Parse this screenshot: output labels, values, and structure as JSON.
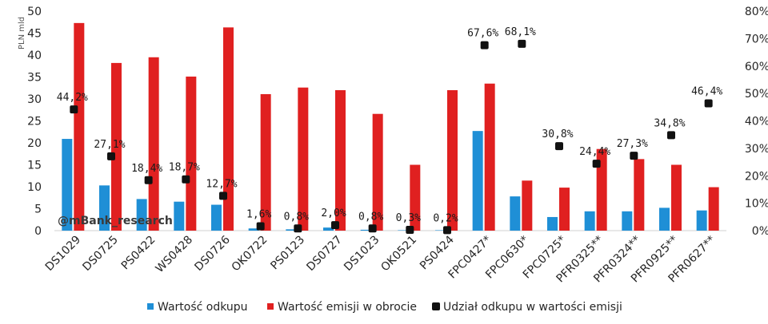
{
  "chart_data": {
    "type": "bar",
    "categories": [
      "DS1029",
      "DS0725",
      "PS0422",
      "WS0428",
      "DS0726",
      "OK0722",
      "PS0123",
      "DS0727",
      "DS1023",
      "OK0521",
      "PS0424",
      "FPC0427*",
      "FPC0630*",
      "FPC0725*",
      "PFR0325**",
      "PFR0324**",
      "PFR0925**",
      "PFR0627**"
    ],
    "y_unit_label": "PLN mld",
    "ylim": [
      0,
      50
    ],
    "yticks": [
      0,
      5,
      10,
      15,
      20,
      25,
      30,
      35,
      40,
      45,
      50
    ],
    "y2lim": [
      0,
      80
    ],
    "y2ticks": [
      "0%",
      "10%",
      "20%",
      "30%",
      "40%",
      "50%",
      "60%",
      "70%",
      "80%"
    ],
    "series": [
      {
        "name": "Wartość odkupu",
        "kind": "bar",
        "axis": "left",
        "color": "#1f8fd6",
        "values": [
          20.9,
          10.3,
          7.2,
          6.6,
          5.9,
          0.5,
          0.3,
          0.7,
          0.2,
          0.1,
          0.1,
          22.7,
          7.8,
          3.1,
          4.4,
          4.4,
          5.2,
          4.6
        ]
      },
      {
        "name": "Wartość emisji w obrocie",
        "kind": "bar",
        "axis": "left",
        "color": "#e02020",
        "values": [
          47.3,
          38.2,
          39.5,
          35.1,
          46.3,
          31.1,
          32.6,
          32.0,
          26.6,
          15.0,
          32.0,
          33.5,
          11.4,
          9.8,
          18.6,
          16.3,
          15.0,
          9.9
        ]
      },
      {
        "name": "Udział odkupu w wartości emisji",
        "kind": "scatter",
        "axis": "right",
        "color": "#111111",
        "values": [
          44.2,
          27.1,
          18.4,
          18.7,
          12.7,
          1.6,
          0.8,
          2.0,
          0.8,
          0.3,
          0.2,
          67.6,
          68.1,
          30.8,
          24.4,
          27.3,
          34.8,
          46.4
        ],
        "labels": [
          "44,2%",
          "27,1%",
          "18,4%",
          "18,7%",
          "12,7%",
          "1,6%",
          "0,8%",
          "2,0%",
          "0,8%",
          "0,3%",
          "0,2%",
          "67,6%",
          "68,1%",
          "30,8%",
          "24,4%",
          "27,3%",
          "34,8%",
          "46,4%"
        ]
      }
    ],
    "legend_position": "bottom",
    "grid": false
  },
  "watermark": "@mBank_research",
  "colors": {
    "bar1": "#1f8fd6",
    "bar2": "#e02020",
    "marker": "#111111",
    "axis": "#d0d0d0"
  }
}
